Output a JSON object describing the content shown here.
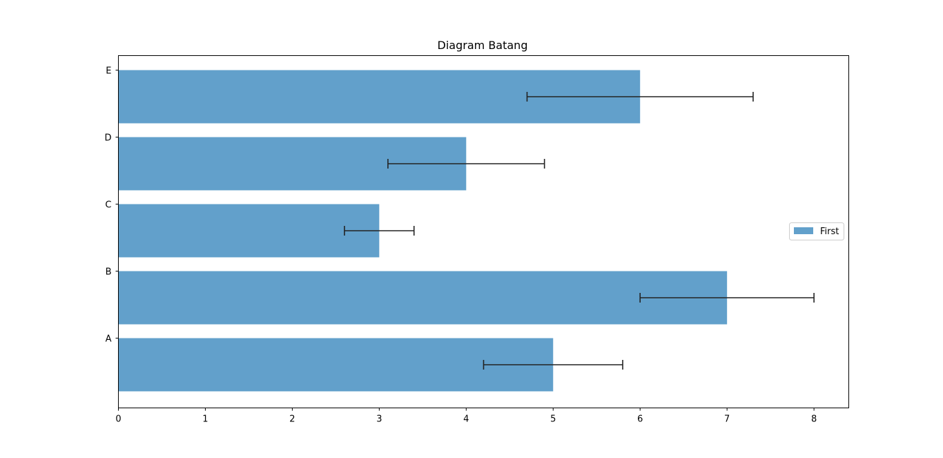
{
  "chart_data": {
    "type": "bar",
    "orientation": "horizontal",
    "title": "Diagram Batang",
    "xlabel": "",
    "ylabel": "",
    "categories": [
      "A",
      "B",
      "C",
      "D",
      "E"
    ],
    "series": [
      {
        "name": "First",
        "values": [
          5,
          7,
          3,
          4,
          6
        ],
        "error_intervals": [
          [
            4.2,
            5.8
          ],
          [
            6.0,
            8.0
          ],
          [
            2.6,
            3.4
          ],
          [
            3.1,
            4.9
          ],
          [
            4.7,
            7.3
          ]
        ],
        "color": "#62a0cb"
      }
    ],
    "xlim": [
      0,
      8.4
    ],
    "xticks": [
      0,
      1,
      2,
      3,
      4,
      5,
      6,
      7,
      8
    ],
    "grid": false,
    "legend_position": "center-right"
  }
}
